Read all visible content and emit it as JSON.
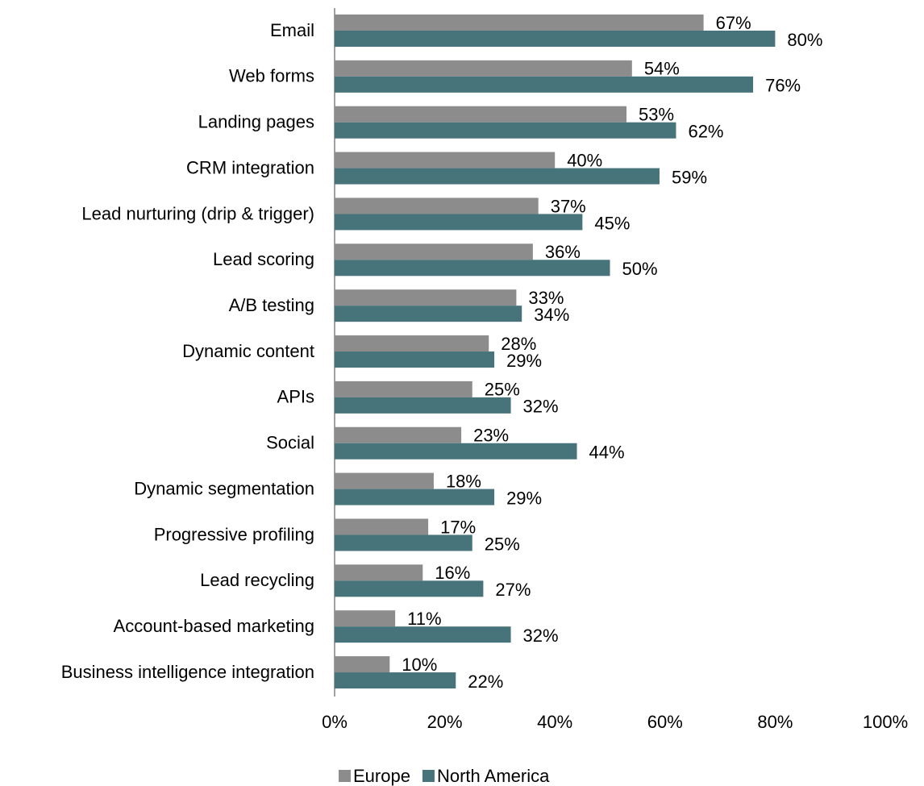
{
  "chart_data": {
    "type": "bar",
    "orientation": "horizontal",
    "categories": [
      "Email",
      "Web forms",
      "Landing pages",
      "CRM integration",
      "Lead nurturing (drip & trigger)",
      "Lead scoring",
      "A/B testing",
      "Dynamic content",
      "APIs",
      "Social",
      "Dynamic segmentation",
      "Progressive profiling",
      "Lead recycling",
      "Account-based marketing",
      "Business intelligence integration"
    ],
    "series": [
      {
        "name": "Europe",
        "color": "#8c8c8c",
        "values": [
          67,
          54,
          53,
          40,
          37,
          36,
          33,
          28,
          25,
          23,
          18,
          17,
          16,
          11,
          10
        ],
        "value_labels": [
          "67%",
          "54%",
          "53%",
          "40%",
          "37%",
          "36%",
          "33%",
          "28%",
          "25%",
          "23%",
          "18%",
          "17%",
          "16%",
          "11%",
          "10%"
        ]
      },
      {
        "name": "North America",
        "color": "#47747a",
        "values": [
          80,
          76,
          62,
          59,
          45,
          50,
          34,
          29,
          32,
          44,
          29,
          25,
          27,
          32,
          22
        ],
        "value_labels": [
          "80%",
          "76%",
          "62%",
          "59%",
          "45%",
          "50%",
          "34%",
          "29%",
          "32%",
          "44%",
          "29%",
          "25%",
          "27%",
          "32%",
          "22%"
        ]
      }
    ],
    "xlim": [
      0,
      100
    ],
    "xticks": [
      {
        "value": 0,
        "label": "0%"
      },
      {
        "value": 20,
        "label": "20%"
      },
      {
        "value": 40,
        "label": "40%"
      },
      {
        "value": 60,
        "label": "60%"
      },
      {
        "value": 80,
        "label": "80%"
      },
      {
        "value": 100,
        "label": "100%"
      }
    ],
    "grid": false,
    "legend": "bottom"
  }
}
